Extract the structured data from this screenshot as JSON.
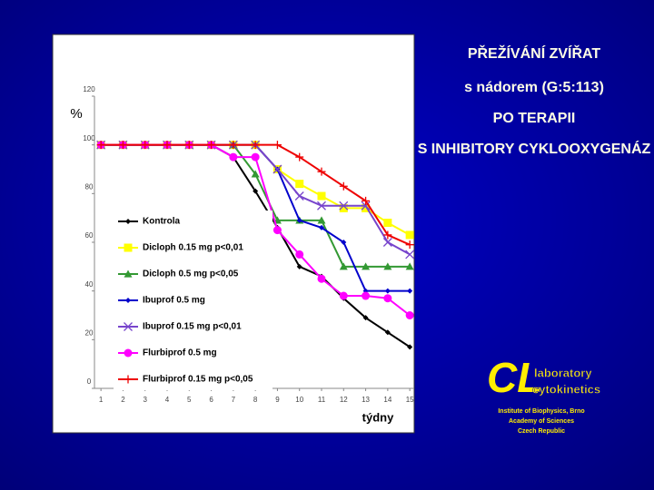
{
  "chart_data": {
    "type": "line",
    "y_label": "%",
    "x_label": "týdny",
    "x": [
      1,
      2,
      3,
      4,
      5,
      6,
      7,
      8,
      9,
      10,
      11,
      12,
      13,
      14,
      15
    ],
    "xlim": [
      0.5,
      15.2
    ],
    "xticks": [
      1,
      2,
      3,
      4,
      5,
      6,
      7,
      8,
      9,
      10,
      11,
      12,
      13,
      14,
      15
    ],
    "ylim": [
      0,
      120
    ],
    "yticks": [
      0,
      20,
      40,
      60,
      80,
      100,
      120
    ],
    "legend": "left",
    "series": [
      {
        "name": "Kontrola",
        "color": "#000000",
        "marker": "diamond",
        "values": [
          100,
          100,
          100,
          100,
          100,
          100,
          95,
          81,
          66,
          50,
          46,
          37,
          29,
          23,
          17
        ]
      },
      {
        "name": "Dicloph 0.15 mg  p<0,01",
        "color": "#ffff00",
        "marker": "square",
        "values": [
          100,
          100,
          100,
          100,
          100,
          100,
          100,
          100,
          90,
          84,
          79,
          74,
          74,
          68,
          63
        ]
      },
      {
        "name": "Dicloph 0.5 mg  p<0,05",
        "color": "#339933",
        "marker": "triangle",
        "values": [
          100,
          100,
          100,
          100,
          100,
          100,
          100,
          88,
          69,
          69,
          69,
          50,
          50,
          50,
          50
        ]
      },
      {
        "name": "Ibuprof 0.5 mg",
        "color": "#0000cc",
        "marker": "diamond",
        "values": [
          100,
          100,
          100,
          100,
          100,
          100,
          100,
          100,
          90,
          69,
          66,
          60,
          40,
          40,
          40
        ]
      },
      {
        "name": "Ibuprof 0.15 mg  p<0,01",
        "color": "#7744cc",
        "marker": "x",
        "values": [
          100,
          100,
          100,
          100,
          100,
          100,
          100,
          100,
          90,
          79,
          75,
          75,
          75,
          60,
          55
        ]
      },
      {
        "name": "Flurbiprof 0.5 mg",
        "color": "#ff00ff",
        "marker": "circle",
        "values": [
          100,
          100,
          100,
          100,
          100,
          100,
          95,
          95,
          65,
          55,
          45,
          38,
          38,
          37,
          30
        ]
      },
      {
        "name": "Flurbiprof 0.15 mg  p<0,05",
        "color": "#ee0000",
        "marker": "plus",
        "values": [
          100,
          100,
          100,
          100,
          100,
          100,
          100,
          100,
          100,
          95,
          89,
          83,
          77,
          63,
          59
        ]
      }
    ]
  },
  "slide": {
    "heading": [
      "PŘEŽÍVÁNÍ ZVÍŘAT",
      "s nádorem (G:5:113)",
      "PO TERAPII",
      "S INHIBITORY CYKLOOXYGENÁZ"
    ],
    "logo": {
      "mark": "CL",
      "name": [
        "laboratory",
        "cytokinetics"
      ],
      "lines": [
        "Institute of Biophysics, Brno",
        "Academy of Sciences",
        "Czech Republic"
      ]
    }
  }
}
